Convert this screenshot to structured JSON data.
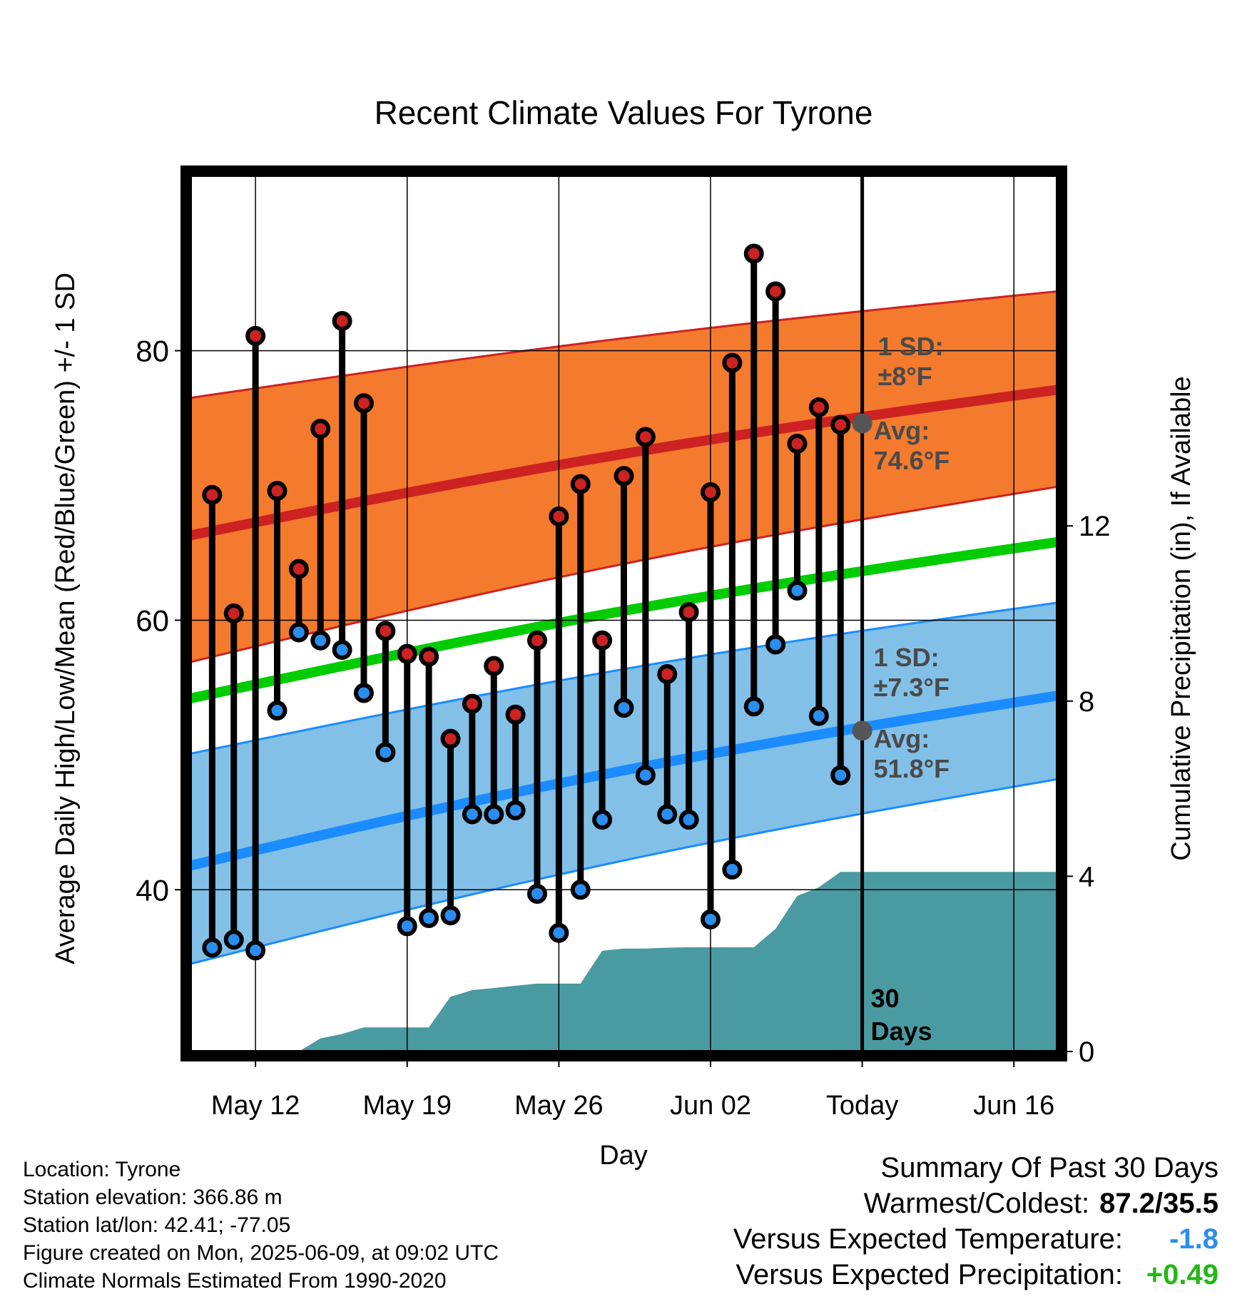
{
  "chart_data": {
    "type": "line",
    "title": "Recent Climate Values For Tyrone",
    "xlabel": "Day",
    "ylabel_left": "Average Daily High/Low/Mean (Red/Blue/Green) +/- 1 SD",
    "ylabel_right": "Cumulative Precipitation (in), If Available",
    "x_range": [
      "2025-05-09",
      "2025-06-18"
    ],
    "y_left_range": [
      28,
      93
    ],
    "y_right_range": [
      0,
      20
    ],
    "x_tick_labels": [
      {
        "date": "2025-05-12",
        "label": "May 12"
      },
      {
        "date": "2025-05-19",
        "label": "May 19"
      },
      {
        "date": "2025-05-26",
        "label": "May 26"
      },
      {
        "date": "2025-06-02",
        "label": "Jun 02"
      },
      {
        "date": "2025-06-09",
        "label": "Today"
      },
      {
        "date": "2025-06-16",
        "label": "Jun 16"
      }
    ],
    "y_left_ticks": [
      40,
      60,
      80
    ],
    "y_right_ticks": [
      0,
      4,
      8,
      12
    ],
    "grid": true,
    "today": "2025-06-09",
    "days_label": "30\nDays",
    "normals": {
      "high_mean": {
        "start": 66.3,
        "end": 77.1
      },
      "high_sd_upper": {
        "start": 76.5,
        "end": 84.4
      },
      "high_sd_lower": {
        "start": 56.9,
        "end": 69.9
      },
      "mean": {
        "start": 54.2,
        "end": 65.8
      },
      "low_mean": {
        "start": 41.8,
        "end": 54.4
      },
      "low_sd_upper": {
        "start": 50.1,
        "end": 61.3
      },
      "low_sd_lower": {
        "start": 34.5,
        "end": 48.2
      }
    },
    "annotations": {
      "high_sd": "1 SD:\n±8°F",
      "high_avg": "Avg:\n74.6°F",
      "low_sd": "1 SD:\n±7.3°F",
      "low_avg": "Avg:\n51.8°F",
      "high_avg_value": 74.6,
      "low_avg_value": 51.8
    },
    "series": [
      {
        "name": "High",
        "color": "#cc2222",
        "dates": [
          "2025-05-10",
          "2025-05-11",
          "2025-05-12",
          "2025-05-13",
          "2025-05-14",
          "2025-05-15",
          "2025-05-16",
          "2025-05-17",
          "2025-05-18",
          "2025-05-19",
          "2025-05-20",
          "2025-05-21",
          "2025-05-22",
          "2025-05-23",
          "2025-05-24",
          "2025-05-25",
          "2025-05-26",
          "2025-05-27",
          "2025-05-28",
          "2025-05-29",
          "2025-05-30",
          "2025-05-31",
          "2025-06-01",
          "2025-06-02",
          "2025-06-03",
          "2025-06-04",
          "2025-06-05",
          "2025-06-06",
          "2025-06-07",
          "2025-06-08"
        ],
        "values": [
          69.3,
          60.5,
          81.1,
          69.6,
          63.8,
          74.2,
          82.2,
          76.1,
          59.2,
          57.5,
          57.3,
          51.2,
          53.8,
          56.6,
          53.0,
          58.5,
          67.7,
          70.1,
          58.5,
          70.7,
          73.6,
          56.0,
          60.6,
          69.5,
          79.1,
          87.2,
          84.4,
          73.1,
          75.8,
          74.5
        ]
      },
      {
        "name": "Low",
        "color": "#2a8ef0",
        "dates": [
          "2025-05-10",
          "2025-05-11",
          "2025-05-12",
          "2025-05-13",
          "2025-05-14",
          "2025-05-15",
          "2025-05-16",
          "2025-05-17",
          "2025-05-18",
          "2025-05-19",
          "2025-05-20",
          "2025-05-21",
          "2025-05-22",
          "2025-05-23",
          "2025-05-24",
          "2025-05-25",
          "2025-05-26",
          "2025-05-27",
          "2025-05-28",
          "2025-05-29",
          "2025-05-30",
          "2025-05-31",
          "2025-06-01",
          "2025-06-02",
          "2025-06-03",
          "2025-06-04",
          "2025-06-05",
          "2025-06-06",
          "2025-06-07",
          "2025-06-08"
        ],
        "values": [
          35.7,
          36.3,
          35.5,
          53.3,
          59.1,
          58.5,
          57.8,
          54.6,
          50.2,
          37.3,
          37.9,
          38.1,
          45.6,
          45.6,
          45.9,
          39.7,
          36.8,
          40.0,
          45.2,
          53.5,
          48.5,
          45.6,
          45.2,
          37.8,
          41.5,
          53.6,
          58.2,
          62.2,
          52.9,
          48.5
        ]
      }
    ],
    "precipitation": {
      "dates": [
        "2025-05-09",
        "2025-05-13",
        "2025-05-14",
        "2025-05-15",
        "2025-05-16",
        "2025-05-17",
        "2025-05-18",
        "2025-05-19",
        "2025-05-20",
        "2025-05-21",
        "2025-05-22",
        "2025-05-23",
        "2025-05-24",
        "2025-05-25",
        "2025-05-26",
        "2025-05-27",
        "2025-05-28",
        "2025-05-29",
        "2025-05-30",
        "2025-05-31",
        "2025-06-01",
        "2025-06-02",
        "2025-06-03",
        "2025-06-04",
        "2025-06-05",
        "2025-06-06",
        "2025-06-07",
        "2025-06-08",
        "2025-06-18"
      ],
      "values": [
        0,
        0,
        0.0,
        0.3,
        0.4,
        0.55,
        0.55,
        0.55,
        0.55,
        1.25,
        1.4,
        1.45,
        1.5,
        1.55,
        1.55,
        1.55,
        2.3,
        2.35,
        2.35,
        2.37,
        2.38,
        2.38,
        2.38,
        2.38,
        2.8,
        3.55,
        3.75,
        4.1,
        4.1
      ]
    }
  },
  "footer_left": [
    "Location: Tyrone",
    "Station elevation: 366.86 m",
    "Station lat/lon: 42.41; -77.05",
    "Figure created on Mon, 2025-06-09, at 09:02 UTC",
    "Climate Normals Estimated From 1990-2020"
  ],
  "summary": {
    "title": "Summary Of Past 30 Days",
    "warmest_coldest_label": "Warmest/Coldest:",
    "warmest_coldest_value": "87.2/35.5",
    "temp_label": "Versus Expected Temperature:",
    "temp_value": "-1.8",
    "temp_color": "#2a8ef0",
    "precip_label": "Versus Expected Precipitation:",
    "precip_value": "+0.49",
    "precip_color": "#22b814"
  },
  "colors": {
    "high_band": "#f47a2e",
    "high_line": "#cc2222",
    "mean_line": "#00cc00",
    "low_band": "#82c0e8",
    "low_line": "#1a8cff",
    "precip_fill": "#4a9aa2",
    "marker_high": "#cc2222",
    "marker_low": "#2a8ef0"
  }
}
